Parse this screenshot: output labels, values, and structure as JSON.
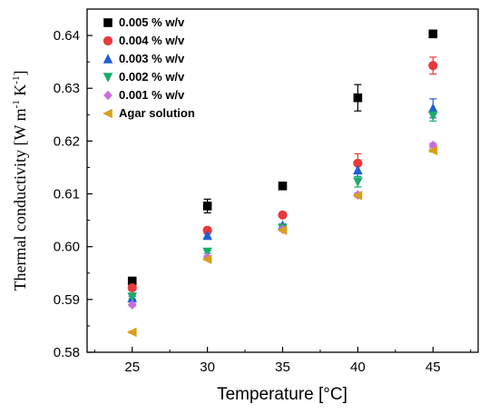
{
  "chart_data": {
    "type": "scatter",
    "xlabel": "Temperature [°C]",
    "ylabel": {
      "text_main": "Thermal conductivity [W m",
      "exp1": "-1",
      "text_mid": " K",
      "exp2": "-1",
      "text_end": "]"
    },
    "xlim": [
      22,
      48
    ],
    "ylim": [
      0.58,
      0.645
    ],
    "xticks": [
      "25",
      "30",
      "35",
      "40",
      "45"
    ],
    "xtick_values": [
      25,
      30,
      35,
      40,
      45
    ],
    "yticks": [
      "0.58",
      "0.59",
      "0.60",
      "0.61",
      "0.62",
      "0.63",
      "0.64"
    ],
    "ytick_values": [
      0.58,
      0.59,
      0.6,
      0.61,
      0.62,
      0.63,
      0.64
    ],
    "legend_position": "top-left",
    "x": [
      25,
      30,
      35,
      40,
      45
    ],
    "series": [
      {
        "name": "0.005 % w/v",
        "marker": "square",
        "color": "#000000",
        "values": [
          0.5935,
          0.6077,
          0.6115,
          0.6282,
          0.6403
        ],
        "errors": [
          0.0003,
          0.0013,
          0.0002,
          0.0025,
          0.0003
        ]
      },
      {
        "name": "0.004 % w/v",
        "marker": "circle",
        "color": "#e8393b",
        "values": [
          0.5922,
          0.6031,
          0.606,
          0.6158,
          0.6343
        ],
        "errors": [
          0.0005,
          0.0004,
          0.0004,
          0.0018,
          0.0016
        ]
      },
      {
        "name": "0.003 % w/v",
        "marker": "triangle-up",
        "color": "#1f5fd6",
        "values": [
          0.5903,
          0.6021,
          0.604,
          0.6145,
          0.6262
        ],
        "errors": [
          0.0003,
          0.0003,
          0.0003,
          0.0012,
          0.0018
        ]
      },
      {
        "name": "0.002 % w/v",
        "marker": "triangle-down",
        "color": "#1aab6a",
        "values": [
          0.5905,
          0.599,
          0.6035,
          0.6123,
          0.6248
        ],
        "errors": [
          0.0004,
          0.0003,
          0.0003,
          0.001,
          0.001
        ]
      },
      {
        "name": "0.001 % w/v",
        "marker": "diamond",
        "color": "#c86ce0",
        "values": [
          0.589,
          0.598,
          0.6033,
          0.6098,
          0.6192
        ],
        "errors": [
          0.0003,
          0.0003,
          0.0002,
          0.0004,
          0.0004
        ]
      },
      {
        "name": "Agar solution",
        "marker": "triangle-left",
        "color": "#d9a018",
        "values": [
          0.5838,
          0.5976,
          0.6031,
          0.6097,
          0.6182
        ],
        "errors": [
          0.0002,
          0.0002,
          0.0002,
          0.0003,
          0.0003
        ]
      }
    ]
  }
}
